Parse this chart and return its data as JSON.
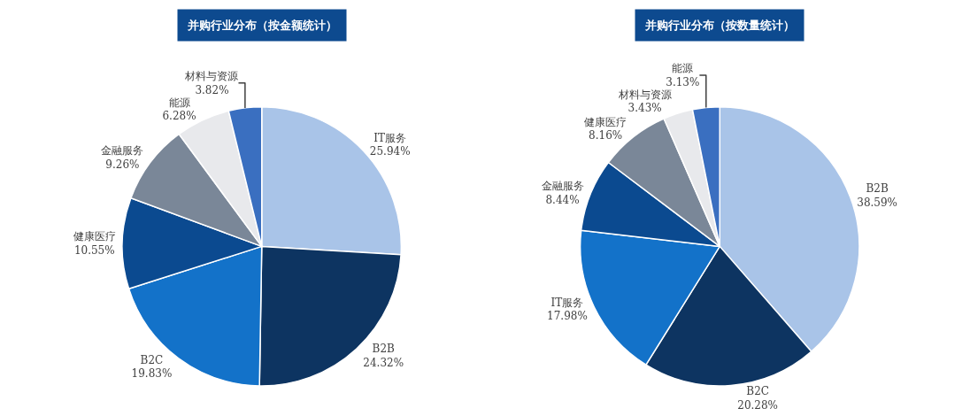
{
  "chart_data": [
    {
      "type": "pie",
      "title": "并购行业分布（按金额统计）",
      "categories": [
        "IT服务",
        "B2B",
        "B2C",
        "健康医疗",
        "金融服务",
        "能源",
        "材料与资源"
      ],
      "values": [
        25.94,
        24.32,
        19.83,
        10.55,
        9.26,
        6.28,
        3.82
      ],
      "value_labels": [
        "25.94%",
        "24.32%",
        "19.83%",
        "10.55%",
        "9.26%",
        "6.28%",
        "3.82%"
      ],
      "colors": [
        "#a9c4e8",
        "#0d3461",
        "#1372c9",
        "#0b4a90",
        "#7a8798",
        "#e8e9ec",
        "#3a6fc0"
      ],
      "legend": false
    },
    {
      "type": "pie",
      "title": "并购行业分布（按数量统计）",
      "categories": [
        "B2B",
        "B2C",
        "IT服务",
        "金融服务",
        "健康医疗",
        "材料与资源",
        "能源"
      ],
      "values": [
        38.59,
        20.28,
        17.98,
        8.44,
        8.16,
        3.43,
        3.13
      ],
      "value_labels": [
        "38.59%",
        "20.28%",
        "17.98%",
        "8.44%",
        "8.16%",
        "3.43%",
        "3.13%"
      ],
      "colors": [
        "#a9c4e8",
        "#0d3461",
        "#1372c9",
        "#0b4a90",
        "#7a8798",
        "#e8e9ec",
        "#3a6fc0"
      ],
      "legend": false
    }
  ]
}
